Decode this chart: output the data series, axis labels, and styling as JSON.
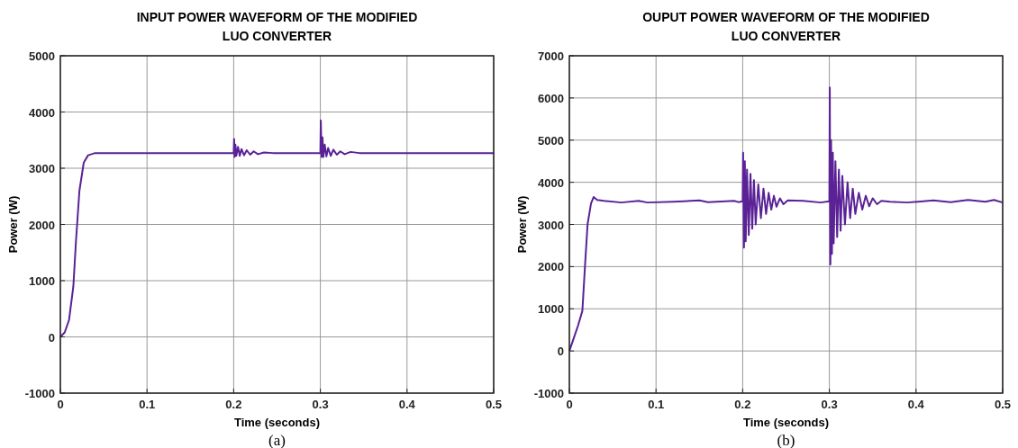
{
  "chart_data": [
    {
      "type": "line",
      "title": "INPUT POWER WAVEFORM OF THE MODIFIED\nLUO CONVERTER",
      "xlabel": "Time (seconds)",
      "ylabel": "Power (W)",
      "annotations": [
        "(a)"
      ],
      "grid": true,
      "xlim": [
        0,
        0.5
      ],
      "ylim": [
        -1000,
        5000
      ],
      "xticks": [
        0,
        0.1,
        0.2,
        0.3,
        0.4,
        0.5
      ],
      "yticks": [
        -1000,
        0,
        1000,
        2000,
        3000,
        4000,
        5000
      ],
      "series": [
        {
          "color": "#5a2296",
          "x": [
            0,
            0.005,
            0.01,
            0.015,
            0.018,
            0.022,
            0.027,
            0.032,
            0.04,
            0.08,
            0.12,
            0.16,
            0.2,
            0.2005,
            0.201,
            0.202,
            0.203,
            0.205,
            0.207,
            0.209,
            0.212,
            0.215,
            0.219,
            0.223,
            0.228,
            0.235,
            0.245,
            0.27,
            0.3,
            0.3005,
            0.3015,
            0.3025,
            0.3035,
            0.305,
            0.307,
            0.309,
            0.312,
            0.315,
            0.319,
            0.323,
            0.328,
            0.335,
            0.345,
            0.4,
            0.45,
            0.5
          ],
          "values": [
            0,
            80,
            300,
            900,
            1700,
            2600,
            3100,
            3230,
            3270,
            3270,
            3270,
            3270,
            3270,
            3520,
            3200,
            3420,
            3220,
            3380,
            3220,
            3340,
            3230,
            3320,
            3240,
            3300,
            3250,
            3280,
            3270,
            3270,
            3270,
            3850,
            3200,
            3550,
            3200,
            3420,
            3210,
            3360,
            3220,
            3330,
            3240,
            3300,
            3250,
            3290,
            3270,
            3270,
            3270,
            3270
          ]
        }
      ]
    },
    {
      "type": "line",
      "title": "OUPUT POWER WAVEFORM OF THE MODIFIED\nLUO CONVERTER",
      "xlabel": "Time (seconds)",
      "ylabel": "Power (W)",
      "annotations": [
        "(b)"
      ],
      "grid": true,
      "xlim": [
        0,
        0.5
      ],
      "ylim": [
        -1000,
        7000
      ],
      "xticks": [
        0,
        0.1,
        0.2,
        0.3,
        0.4,
        0.5
      ],
      "yticks": [
        -1000,
        0,
        1000,
        2000,
        3000,
        4000,
        5000,
        6000,
        7000
      ],
      "series": [
        {
          "color": "#5a2296",
          "x": [
            0,
            0.005,
            0.01,
            0.015,
            0.018,
            0.021,
            0.025,
            0.028,
            0.032,
            0.04,
            0.06,
            0.08,
            0.09,
            0.12,
            0.15,
            0.16,
            0.19,
            0.195,
            0.2,
            0.2005,
            0.2015,
            0.2025,
            0.2035,
            0.205,
            0.207,
            0.209,
            0.211,
            0.213,
            0.215,
            0.218,
            0.221,
            0.224,
            0.227,
            0.23,
            0.233,
            0.236,
            0.239,
            0.243,
            0.247,
            0.252,
            0.27,
            0.29,
            0.3,
            0.3005,
            0.3012,
            0.302,
            0.303,
            0.304,
            0.305,
            0.307,
            0.309,
            0.311,
            0.313,
            0.315,
            0.318,
            0.321,
            0.324,
            0.327,
            0.33,
            0.334,
            0.338,
            0.342,
            0.346,
            0.35,
            0.355,
            0.36,
            0.37,
            0.39,
            0.42,
            0.44,
            0.46,
            0.48,
            0.49,
            0.5
          ],
          "values": [
            0,
            300,
            600,
            950,
            2000,
            3000,
            3500,
            3650,
            3580,
            3560,
            3520,
            3560,
            3520,
            3540,
            3570,
            3530,
            3560,
            3530,
            3550,
            4700,
            2450,
            4500,
            2600,
            4300,
            2750,
            4200,
            2900,
            4050,
            3000,
            3950,
            3150,
            3850,
            3250,
            3750,
            3350,
            3680,
            3420,
            3620,
            3480,
            3570,
            3560,
            3520,
            3550,
            6250,
            2050,
            5000,
            2300,
            4700,
            2550,
            4500,
            2700,
            4300,
            2850,
            4150,
            3000,
            4000,
            3150,
            3850,
            3250,
            3750,
            3350,
            3680,
            3430,
            3620,
            3480,
            3560,
            3540,
            3520,
            3570,
            3530,
            3580,
            3540,
            3580,
            3520
          ]
        }
      ]
    }
  ]
}
